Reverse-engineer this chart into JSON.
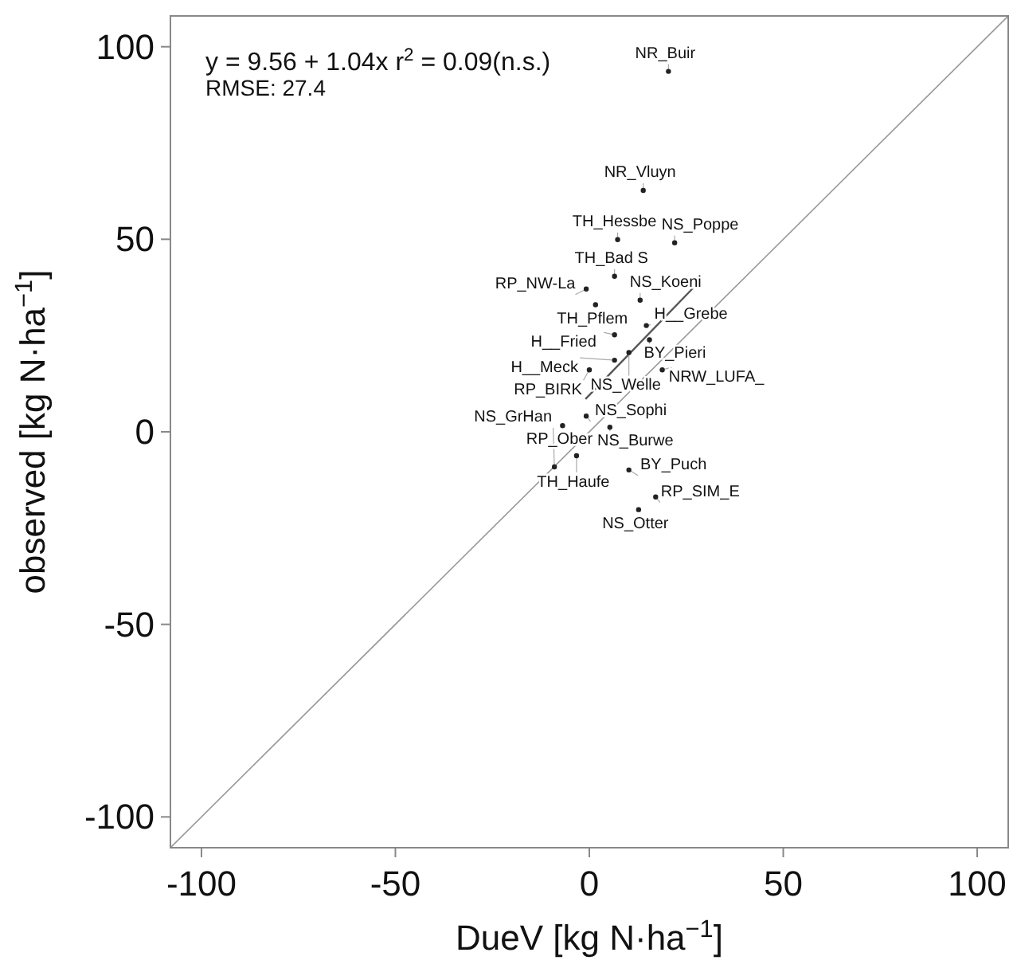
{
  "chart_data": {
    "type": "scatter",
    "xlabel": "DueV [kg N·ha$^{−1}$]",
    "ylabel": "observed  [kg N·ha$^{−1}$]",
    "xlim": [
      -108,
      108
    ],
    "ylim": [
      -108,
      108
    ],
    "xticks": [
      -100,
      -50,
      0,
      50,
      100
    ],
    "yticks": [
      -100,
      -50,
      0,
      50,
      100
    ],
    "series": [
      {
        "type": "line",
        "color": "#999999",
        "x": [
          -108,
          108
        ],
        "values": [
          -108,
          108
        ]
      },
      {
        "type": "line",
        "color": "#555555",
        "x": [
          -1,
          27
        ],
        "values": [
          8.5,
          37.6
        ]
      },
      {
        "color": "#222222",
        "marker": "circle",
        "x": [
          20.4,
          13.9,
          7.3,
          22,
          6.5,
          -0.8,
          13.1,
          1.6,
          14.7,
          6.5,
          15.5,
          10.2,
          6.5,
          0,
          18.8,
          -0.8,
          -6.9,
          5.3,
          -3.3,
          -9,
          10.2,
          17.1,
          12.7
        ],
        "values": [
          93.6,
          62.7,
          49.9,
          49.1,
          40.4,
          37.1,
          34.2,
          33,
          27.6,
          25.2,
          23.9,
          20.6,
          18.6,
          16.1,
          16.1,
          4.1,
          1.6,
          1.2,
          -6.2,
          -9.1,
          -9.9,
          -16.9,
          -20.2
        ]
      }
    ],
    "annotations": [
      "y = 9.56 + 1.04x   r$^{2}$ = 0.09(n.s.)",
      "RMSE: 27.4",
      {
        "text": "NR_Buir",
        "x": 20.4,
        "y": 93.6
      },
      {
        "text": "NR_Vluyn",
        "x": 13.9,
        "y": 62.7
      },
      {
        "text": "TH_Hessbe",
        "x": 7.3,
        "y": 49.9
      },
      {
        "text": "NS_Poppe",
        "x": 22,
        "y": 49.1
      },
      {
        "text": "TH_Bad S",
        "x": 6.5,
        "y": 40.4
      },
      {
        "text": "RP_NW-La",
        "x": -0.8,
        "y": 37.1
      },
      {
        "text": "NS_Koeni",
        "x": 13.1,
        "y": 34.2
      },
      {
        "text": "TH_Pflem",
        "x": 1.6,
        "y": 33
      },
      {
        "text": "H__Grebe",
        "x": 14.7,
        "y": 27.6
      },
      {
        "text": "H__Fried",
        "x": 6.5,
        "y": 25.2
      },
      {
        "text": "BY_Pieri",
        "x": 15.5,
        "y": 23.9
      },
      {
        "text": "NS_Welle",
        "x": 10.2,
        "y": 20.6
      },
      {
        "text": "H__Meck",
        "x": 6.5,
        "y": 18.6
      },
      {
        "text": "RP_BIRK",
        "x": 0,
        "y": 16.1
      },
      {
        "text": "NRW_LUFA_",
        "x": 18.8,
        "y": 16.1
      },
      {
        "text": "NS_Sophi",
        "x": -0.8,
        "y": 4.1
      },
      {
        "text": "RP_Ober",
        "x": -6.9,
        "y": 1.6
      },
      {
        "text": "NS_Burwe",
        "x": 5.3,
        "y": 1.2
      },
      {
        "text": "TH_Haufe",
        "x": -3.3,
        "y": -6.2
      },
      {
        "text": "NS_GrHan",
        "x": -9,
        "y": -9.1
      },
      {
        "text": "BY_Puch",
        "x": 10.2,
        "y": -9.9
      },
      {
        "text": "RP_SIM_E",
        "x": 17.1,
        "y": -16.9
      },
      {
        "text": "NS_Otter",
        "x": 12.7,
        "y": -20.2
      }
    ]
  }
}
